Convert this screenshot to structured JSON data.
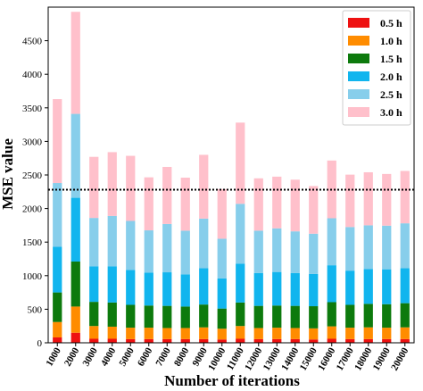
{
  "chart_data": {
    "type": "bar",
    "stacked": true,
    "xlabel": "Number of iterations",
    "ylabel": "MSE value",
    "ylim": [
      0,
      5000
    ],
    "yticks": [
      0,
      500,
      1000,
      1500,
      2000,
      2500,
      3000,
      3500,
      4000,
      4500
    ],
    "categories": [
      "1000",
      "2000",
      "3000",
      "4000",
      "5000",
      "6000",
      "7000",
      "8000",
      "9000",
      "10000",
      "11000",
      "12000",
      "13000",
      "14000",
      "15000",
      "16000",
      "17000",
      "18000",
      "19000",
      "20000"
    ],
    "reference_line": {
      "y": 2280,
      "style": "dotted",
      "color": "#000000"
    },
    "legend_position": "top-right",
    "series": [
      {
        "name": "0.5 h",
        "color": "#ee1111",
        "values": [
          80,
          150,
          60,
          60,
          55,
          55,
          55,
          55,
          55,
          50,
          60,
          55,
          55,
          55,
          50,
          60,
          55,
          55,
          55,
          55
        ]
      },
      {
        "name": "1.0 h",
        "color": "#ff8c00",
        "values": [
          230,
          390,
          190,
          180,
          170,
          170,
          165,
          165,
          175,
          160,
          190,
          165,
          170,
          165,
          165,
          185,
          170,
          175,
          170,
          175
        ]
      },
      {
        "name": "1.5 h",
        "color": "#0d7a0d",
        "values": [
          440,
          670,
          360,
          360,
          340,
          330,
          330,
          320,
          340,
          300,
          350,
          330,
          330,
          330,
          330,
          360,
          340,
          350,
          350,
          360
        ]
      },
      {
        "name": "2.0 h",
        "color": "#11b5ee",
        "values": [
          680,
          950,
          530,
          540,
          520,
          490,
          500,
          480,
          540,
          450,
          580,
          490,
          500,
          490,
          480,
          550,
          510,
          520,
          520,
          520
        ]
      },
      {
        "name": "2.5 h",
        "color": "#87ceeb",
        "values": [
          950,
          1250,
          720,
          750,
          730,
          630,
          720,
          650,
          740,
          590,
          890,
          630,
          650,
          620,
          600,
          700,
          650,
          650,
          650,
          670
        ]
      },
      {
        "name": "3.0 h",
        "color": "#ffc0cb",
        "values": [
          1250,
          1520,
          910,
          950,
          970,
          790,
          850,
          790,
          950,
          740,
          1210,
          780,
          770,
          770,
          710,
          860,
          780,
          790,
          770,
          780
        ]
      }
    ]
  }
}
